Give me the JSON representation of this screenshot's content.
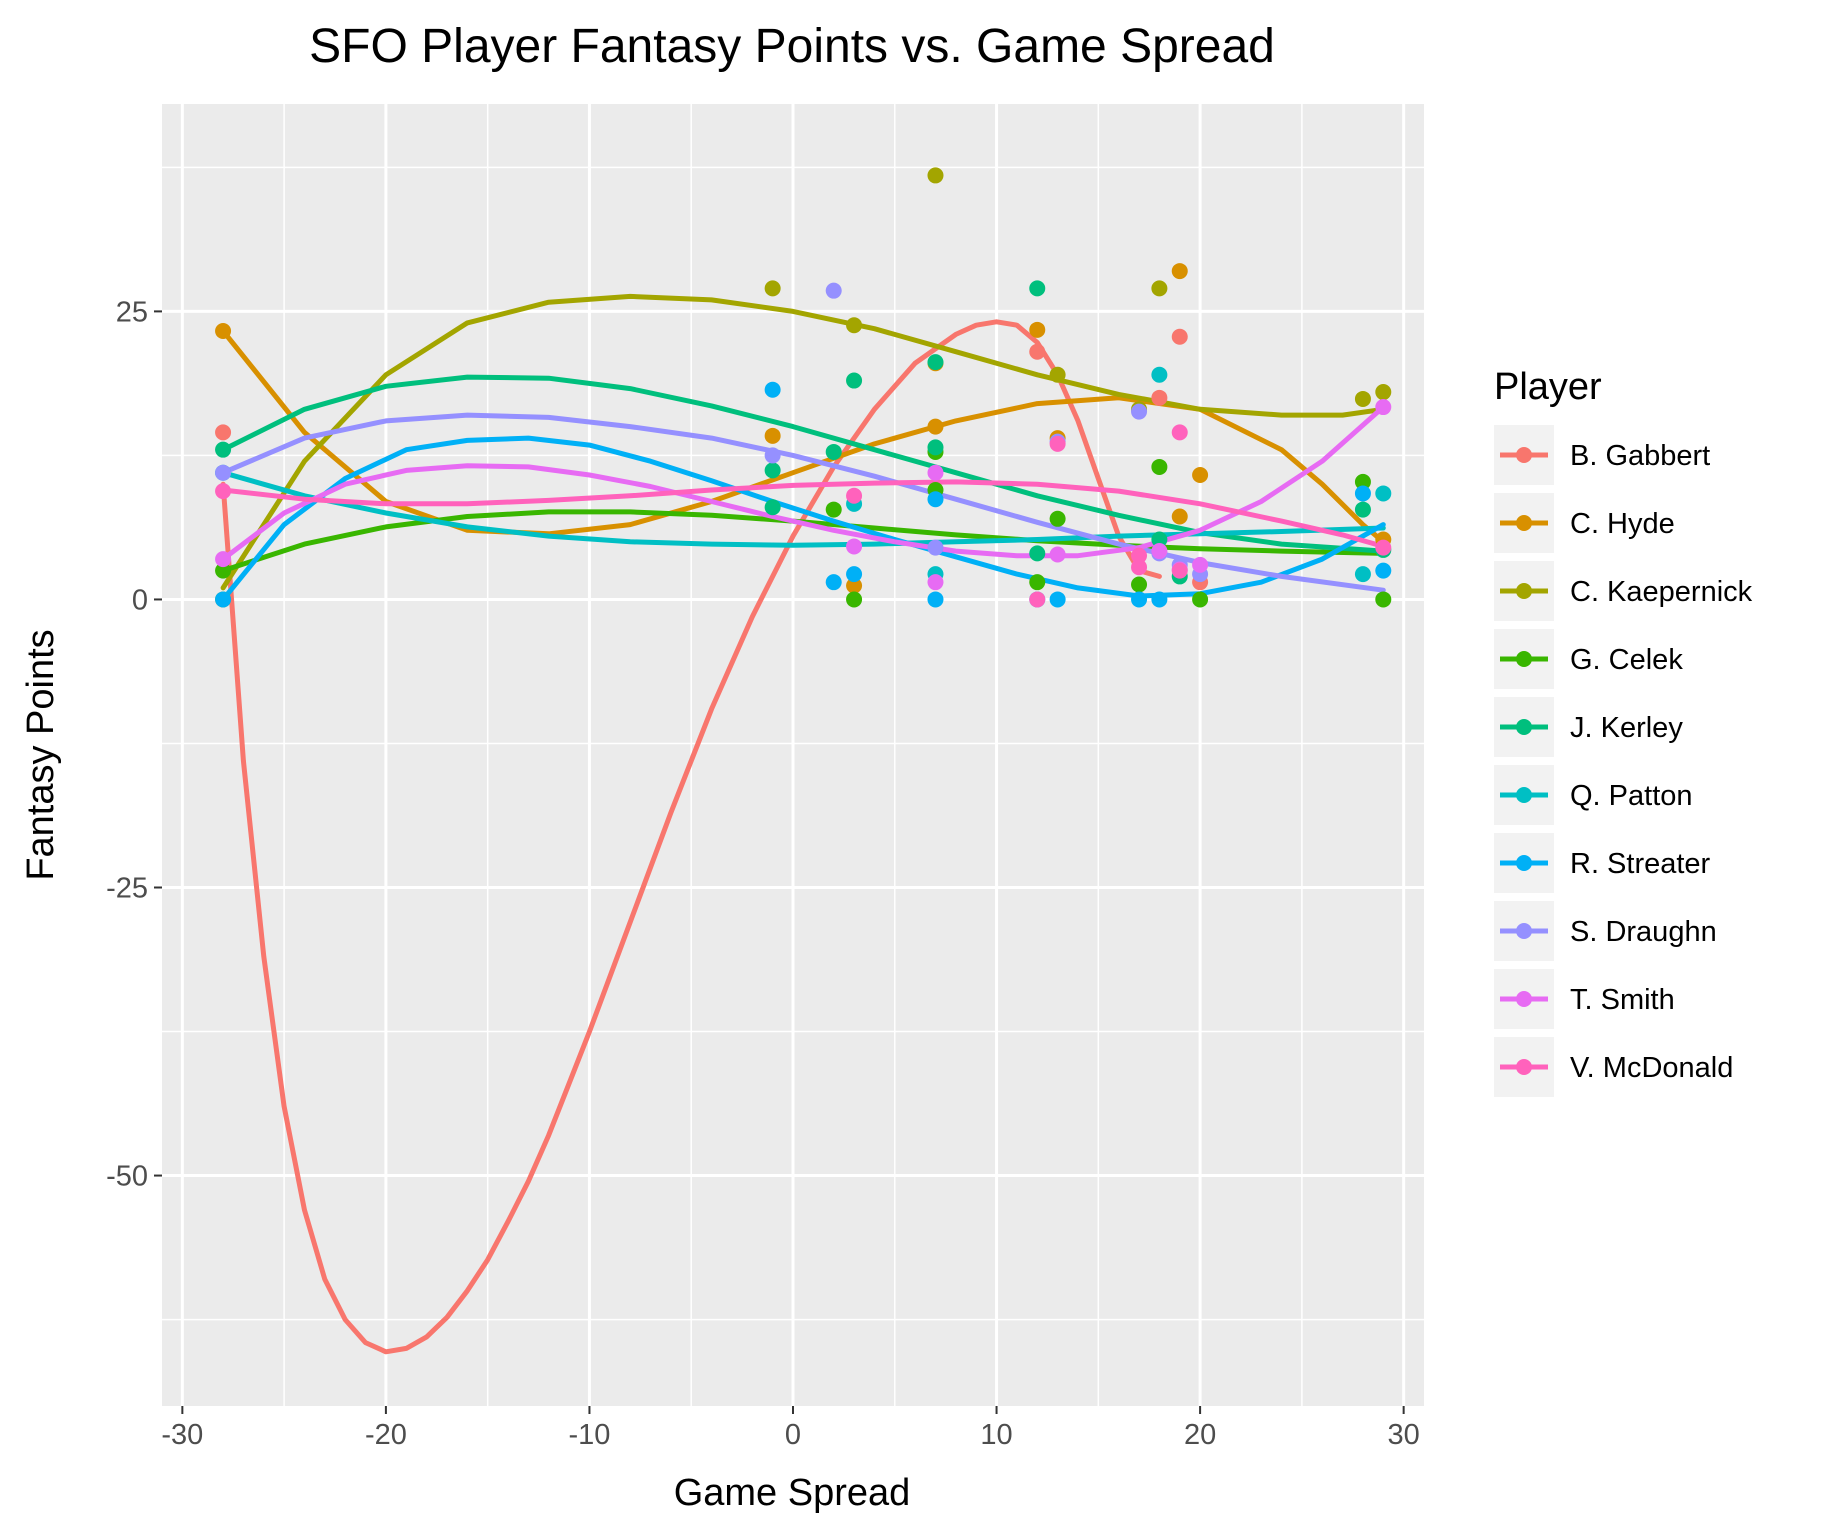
{
  "chart_data": {
    "type": "scatter",
    "title": "SFO Player Fantasy Points vs. Game Spread",
    "xlabel": "Game Spread",
    "ylabel": "Fantasy Points",
    "xlim": [
      -31,
      31
    ],
    "ylim": [
      -70,
      43
    ],
    "x_ticks": [
      -30,
      -20,
      -10,
      0,
      10,
      20,
      30
    ],
    "y_ticks": [
      -50,
      -25,
      0,
      25
    ],
    "grid": true,
    "legend": {
      "title": "Player",
      "position": "right"
    },
    "series": [
      {
        "name": "B. Gabbert",
        "color": "#F8766D",
        "points": [
          [
            -28,
            14.5
          ],
          [
            12,
            21.5
          ],
          [
            18,
            17.5
          ],
          [
            19,
            22.8
          ],
          [
            20,
            1.5
          ]
        ],
        "trend": [
          [
            -28,
            10
          ],
          [
            -27,
            -14
          ],
          [
            -26,
            -31
          ],
          [
            -25,
            -44
          ],
          [
            -24,
            -53
          ],
          [
            -23,
            -59
          ],
          [
            -22,
            -62.5
          ],
          [
            -21,
            -64.5
          ],
          [
            -20,
            -65.3
          ],
          [
            -19,
            -65
          ],
          [
            -18,
            -64
          ],
          [
            -17,
            -62.3
          ],
          [
            -16,
            -60
          ],
          [
            -15,
            -57.3
          ],
          [
            -14,
            -54
          ],
          [
            -13,
            -50.5
          ],
          [
            -12,
            -46.5
          ],
          [
            -11,
            -42
          ],
          [
            -10,
            -37.5
          ],
          [
            -8,
            -28
          ],
          [
            -6,
            -18.5
          ],
          [
            -4,
            -9.5
          ],
          [
            -2,
            -1.5
          ],
          [
            0,
            5.5
          ],
          [
            2,
            11.5
          ],
          [
            4,
            16.5
          ],
          [
            6,
            20.5
          ],
          [
            8,
            23
          ],
          [
            9,
            23.8
          ],
          [
            10,
            24.1
          ],
          [
            11,
            23.8
          ],
          [
            12,
            22.3
          ],
          [
            13,
            19.5
          ],
          [
            14,
            15.5
          ],
          [
            15,
            10.5
          ],
          [
            16,
            5.5
          ],
          [
            17,
            2.5
          ],
          [
            18,
            2
          ]
        ]
      },
      {
        "name": "C. Hyde",
        "color": "#D89000",
        "points": [
          [
            -28,
            23.3
          ],
          [
            -1,
            14.2
          ],
          [
            3,
            1.2
          ],
          [
            7,
            15
          ],
          [
            7,
            20.5
          ],
          [
            12,
            23.4
          ],
          [
            13,
            14
          ],
          [
            19,
            28.5
          ],
          [
            19,
            7.2
          ],
          [
            20,
            10.8
          ],
          [
            29,
            5.2
          ]
        ],
        "trend": [
          [
            -28,
            23.3
          ],
          [
            -24,
            14.5
          ],
          [
            -20,
            8.5
          ],
          [
            -16,
            6
          ],
          [
            -12,
            5.7
          ],
          [
            -8,
            6.5
          ],
          [
            -4,
            8.5
          ],
          [
            0,
            11
          ],
          [
            4,
            13.5
          ],
          [
            8,
            15.5
          ],
          [
            12,
            17
          ],
          [
            16,
            17.5
          ],
          [
            20,
            16.5
          ],
          [
            24,
            13
          ],
          [
            26,
            10
          ],
          [
            28,
            6.5
          ],
          [
            29,
            5
          ]
        ]
      },
      {
        "name": "C. Kaepernick",
        "color": "#A3A500",
        "points": [
          [
            -28,
            0
          ],
          [
            -1,
            27
          ],
          [
            3,
            23.8
          ],
          [
            7,
            36.8
          ],
          [
            13,
            19.5
          ],
          [
            17,
            16.5
          ],
          [
            18,
            27
          ],
          [
            28,
            17.4
          ],
          [
            29,
            18
          ]
        ],
        "trend": [
          [
            -28,
            1
          ],
          [
            -24,
            12
          ],
          [
            -20,
            19.5
          ],
          [
            -16,
            24
          ],
          [
            -12,
            25.8
          ],
          [
            -8,
            26.3
          ],
          [
            -4,
            26
          ],
          [
            0,
            25
          ],
          [
            4,
            23.5
          ],
          [
            8,
            21.5
          ],
          [
            12,
            19.5
          ],
          [
            16,
            17.8
          ],
          [
            20,
            16.5
          ],
          [
            24,
            16
          ],
          [
            27,
            16
          ],
          [
            29,
            16.5
          ]
        ]
      },
      {
        "name": "G. Celek",
        "color": "#39B600",
        "points": [
          [
            -28,
            2.5
          ],
          [
            2,
            7.8
          ],
          [
            3,
            0
          ],
          [
            7,
            9.5
          ],
          [
            7,
            12.8
          ],
          [
            12,
            1.5
          ],
          [
            13,
            7
          ],
          [
            17,
            1.3
          ],
          [
            18,
            11.5
          ],
          [
            20,
            0
          ],
          [
            28,
            10.2
          ],
          [
            29,
            0
          ]
        ],
        "trend": [
          [
            -28,
            2.5
          ],
          [
            -24,
            4.8
          ],
          [
            -20,
            6.3
          ],
          [
            -16,
            7.2
          ],
          [
            -12,
            7.6
          ],
          [
            -8,
            7.6
          ],
          [
            -4,
            7.3
          ],
          [
            0,
            6.8
          ],
          [
            4,
            6.2
          ],
          [
            8,
            5.6
          ],
          [
            12,
            5.1
          ],
          [
            16,
            4.7
          ],
          [
            20,
            4.4
          ],
          [
            24,
            4.2
          ],
          [
            29,
            4
          ]
        ]
      },
      {
        "name": "J. Kerley",
        "color": "#00BF7D",
        "points": [
          [
            -28,
            13
          ],
          [
            -1,
            11.2
          ],
          [
            -1,
            8
          ],
          [
            2,
            12.8
          ],
          [
            3,
            19
          ],
          [
            7,
            20.6
          ],
          [
            7,
            13.2
          ],
          [
            12,
            27
          ],
          [
            12,
            4
          ],
          [
            18,
            5.2
          ],
          [
            19,
            2
          ],
          [
            28,
            7.8
          ],
          [
            29,
            4.3
          ]
        ],
        "trend": [
          [
            -28,
            13
          ],
          [
            -24,
            16.5
          ],
          [
            -20,
            18.5
          ],
          [
            -16,
            19.3
          ],
          [
            -12,
            19.2
          ],
          [
            -8,
            18.3
          ],
          [
            -4,
            16.8
          ],
          [
            0,
            15
          ],
          [
            4,
            13
          ],
          [
            8,
            11
          ],
          [
            12,
            9
          ],
          [
            16,
            7.3
          ],
          [
            20,
            5.8
          ],
          [
            24,
            4.8
          ],
          [
            29,
            4.2
          ]
        ]
      },
      {
        "name": "Q. Patton",
        "color": "#00BFC4",
        "points": [
          [
            -28,
            11
          ],
          [
            3,
            8.3
          ],
          [
            7,
            2.2
          ],
          [
            18,
            19.5
          ],
          [
            28,
            2.2
          ],
          [
            29,
            9.2
          ]
        ],
        "trend": [
          [
            -28,
            11
          ],
          [
            -24,
            9
          ],
          [
            -20,
            7.5
          ],
          [
            -16,
            6.3
          ],
          [
            -12,
            5.5
          ],
          [
            -8,
            5
          ],
          [
            -4,
            4.8
          ],
          [
            0,
            4.7
          ],
          [
            4,
            4.8
          ],
          [
            8,
            5
          ],
          [
            12,
            5.2
          ],
          [
            16,
            5.5
          ],
          [
            20,
            5.7
          ],
          [
            24,
            5.9
          ],
          [
            29,
            6.2
          ]
        ]
      },
      {
        "name": "R. Streater",
        "color": "#00B0F6",
        "points": [
          [
            -28,
            0
          ],
          [
            -1,
            18.2
          ],
          [
            2,
            1.5
          ],
          [
            3,
            2.2
          ],
          [
            7,
            0
          ],
          [
            7,
            8.7
          ],
          [
            12,
            0
          ],
          [
            13,
            0
          ],
          [
            17,
            0
          ],
          [
            18,
            0
          ],
          [
            28,
            9.2
          ],
          [
            29,
            2.5
          ]
        ],
        "trend": [
          [
            -28,
            0
          ],
          [
            -25,
            6.5
          ],
          [
            -22,
            10.5
          ],
          [
            -19,
            13
          ],
          [
            -16,
            13.8
          ],
          [
            -13,
            14
          ],
          [
            -10,
            13.4
          ],
          [
            -7,
            12
          ],
          [
            -4,
            10.3
          ],
          [
            -1,
            8.5
          ],
          [
            2,
            6.8
          ],
          [
            5,
            5.2
          ],
          [
            8,
            3.7
          ],
          [
            11,
            2.2
          ],
          [
            14,
            1
          ],
          [
            17,
            0.3
          ],
          [
            20,
            0.5
          ],
          [
            23,
            1.5
          ],
          [
            26,
            3.5
          ],
          [
            29,
            6.5
          ]
        ]
      },
      {
        "name": "S. Draughn",
        "color": "#9590FF",
        "points": [
          [
            -28,
            11
          ],
          [
            -1,
            12.5
          ],
          [
            2,
            26.8
          ],
          [
            7,
            4.5
          ],
          [
            13,
            13.7
          ],
          [
            17,
            16.3
          ],
          [
            18,
            4
          ],
          [
            19,
            3
          ],
          [
            20,
            2.2
          ]
        ],
        "trend": [
          [
            -28,
            11
          ],
          [
            -24,
            14
          ],
          [
            -20,
            15.5
          ],
          [
            -16,
            16
          ],
          [
            -12,
            15.8
          ],
          [
            -8,
            15
          ],
          [
            -4,
            14
          ],
          [
            0,
            12.5
          ],
          [
            4,
            10.7
          ],
          [
            8,
            8.7
          ],
          [
            12,
            6.7
          ],
          [
            16,
            4.8
          ],
          [
            20,
            3.2
          ],
          [
            24,
            2
          ],
          [
            29,
            0.8
          ]
        ]
      },
      {
        "name": "T. Smith",
        "color": "#E76BF3",
        "points": [
          [
            -28,
            3.5
          ],
          [
            3,
            4.6
          ],
          [
            7,
            1.5
          ],
          [
            7,
            11
          ],
          [
            13,
            3.9
          ],
          [
            18,
            4.2
          ],
          [
            19,
            2.6
          ],
          [
            20,
            3
          ],
          [
            29,
            16.7
          ]
        ],
        "trend": [
          [
            -28,
            3.5
          ],
          [
            -25,
            7.5
          ],
          [
            -22,
            10
          ],
          [
            -19,
            11.2
          ],
          [
            -16,
            11.6
          ],
          [
            -13,
            11.5
          ],
          [
            -10,
            10.8
          ],
          [
            -7,
            9.8
          ],
          [
            -4,
            8.5
          ],
          [
            -1,
            7.2
          ],
          [
            2,
            6
          ],
          [
            5,
            5
          ],
          [
            8,
            4.2
          ],
          [
            11,
            3.8
          ],
          [
            14,
            3.8
          ],
          [
            17,
            4.5
          ],
          [
            20,
            6
          ],
          [
            23,
            8.5
          ],
          [
            26,
            12
          ],
          [
            29,
            16.7
          ]
        ]
      },
      {
        "name": "V. McDonald",
        "color": "#FF62BC",
        "points": [
          [
            -28,
            9.4
          ],
          [
            3,
            9
          ],
          [
            12,
            0
          ],
          [
            13,
            13.5
          ],
          [
            17,
            3.8
          ],
          [
            17,
            2.8
          ],
          [
            19,
            14.5
          ],
          [
            19,
            2.5
          ],
          [
            29,
            4.5
          ]
        ],
        "trend": [
          [
            -28,
            9.5
          ],
          [
            -24,
            8.7
          ],
          [
            -20,
            8.3
          ],
          [
            -16,
            8.3
          ],
          [
            -12,
            8.6
          ],
          [
            -8,
            9
          ],
          [
            -4,
            9.5
          ],
          [
            0,
            9.9
          ],
          [
            4,
            10.1
          ],
          [
            8,
            10.2
          ],
          [
            12,
            10
          ],
          [
            16,
            9.4
          ],
          [
            20,
            8.3
          ],
          [
            24,
            6.8
          ],
          [
            27,
            5.6
          ],
          [
            29,
            4.6
          ]
        ]
      }
    ]
  }
}
